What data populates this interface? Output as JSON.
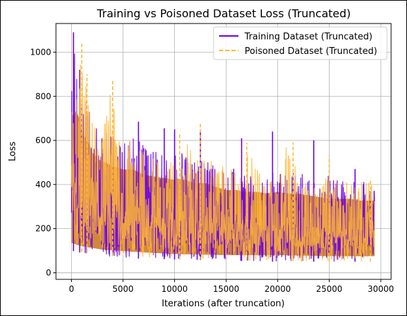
{
  "chart_data": {
    "type": "line",
    "title": "Training vs Poisoned Dataset Loss (Truncated)",
    "xlabel": "Iterations (after truncation)",
    "ylabel": "Loss",
    "xlim": [
      -1500,
      31000
    ],
    "ylim": [
      -30,
      1130
    ],
    "x_ticks": [
      0,
      5000,
      10000,
      15000,
      20000,
      25000,
      30000
    ],
    "y_ticks": [
      0,
      200,
      400,
      600,
      800,
      1000
    ],
    "grid": true,
    "legend_position": "top-right",
    "x_max": 29400,
    "series": [
      {
        "name": "Training Dataset (Truncated)",
        "color": "#6a00e8",
        "style": "solid",
        "upper_envelope": [
          [
            0,
            780
          ],
          [
            200,
            1090
          ],
          [
            500,
            1000
          ],
          [
            1000,
            820
          ],
          [
            1500,
            770
          ],
          [
            2000,
            720
          ],
          [
            3000,
            650
          ],
          [
            4000,
            620
          ],
          [
            5000,
            600
          ],
          [
            6000,
            620
          ],
          [
            7000,
            580
          ],
          [
            8000,
            560
          ],
          [
            9000,
            560
          ],
          [
            10000,
            550
          ],
          [
            11000,
            540
          ],
          [
            12000,
            520
          ],
          [
            13000,
            520
          ],
          [
            14000,
            500
          ],
          [
            15000,
            480
          ],
          [
            16000,
            480
          ],
          [
            17000,
            470
          ],
          [
            18000,
            470
          ],
          [
            19000,
            460
          ],
          [
            20000,
            470
          ],
          [
            21000,
            460
          ],
          [
            22000,
            460
          ],
          [
            23000,
            450
          ],
          [
            24000,
            440
          ],
          [
            25000,
            440
          ],
          [
            26000,
            430
          ],
          [
            27000,
            430
          ],
          [
            28000,
            420
          ],
          [
            29400,
            420
          ]
        ],
        "lower_envelope": [
          [
            0,
            100
          ],
          [
            1000,
            90
          ],
          [
            3000,
            75
          ],
          [
            6000,
            65
          ],
          [
            10000,
            60
          ],
          [
            15000,
            55
          ],
          [
            20000,
            50
          ],
          [
            25000,
            50
          ],
          [
            29400,
            50
          ]
        ],
        "spikes": [
          [
            200,
            1090
          ],
          [
            800,
            920
          ],
          [
            6500,
            685
          ],
          [
            9000,
            655
          ],
          [
            10000,
            650
          ],
          [
            12500,
            640
          ],
          [
            16500,
            610
          ],
          [
            19500,
            640
          ],
          [
            23500,
            600
          ],
          [
            27500,
            470
          ]
        ]
      },
      {
        "name": "Poisoned Dataset (Truncated)",
        "color": "#ffb732",
        "style": "dashed",
        "upper_envelope": [
          [
            0,
            760
          ],
          [
            300,
            950
          ],
          [
            600,
            920
          ],
          [
            1000,
            1040
          ],
          [
            1500,
            820
          ],
          [
            2000,
            700
          ],
          [
            3000,
            640
          ],
          [
            4000,
            870
          ],
          [
            5000,
            600
          ],
          [
            6000,
            600
          ],
          [
            7000,
            570
          ],
          [
            8000,
            560
          ],
          [
            9000,
            550
          ],
          [
            10000,
            540
          ],
          [
            11000,
            620
          ],
          [
            12000,
            520
          ],
          [
            13000,
            520
          ],
          [
            14000,
            500
          ],
          [
            15000,
            490
          ],
          [
            16000,
            480
          ],
          [
            17000,
            580
          ],
          [
            18000,
            470
          ],
          [
            19000,
            460
          ],
          [
            20000,
            470
          ],
          [
            21000,
            590
          ],
          [
            22000,
            460
          ],
          [
            23000,
            450
          ],
          [
            24000,
            440
          ],
          [
            25000,
            430
          ],
          [
            26000,
            430
          ],
          [
            27000,
            430
          ],
          [
            28000,
            420
          ],
          [
            29400,
            420
          ]
        ],
        "lower_envelope": [
          [
            0,
            110
          ],
          [
            1000,
            95
          ],
          [
            3000,
            80
          ],
          [
            6000,
            70
          ],
          [
            10000,
            60
          ],
          [
            15000,
            55
          ],
          [
            20000,
            55
          ],
          [
            25000,
            50
          ],
          [
            29400,
            50
          ]
        ],
        "spikes": [
          [
            1000,
            1040
          ],
          [
            1500,
            900
          ],
          [
            4000,
            870
          ],
          [
            10500,
            630
          ],
          [
            12500,
            675
          ],
          [
            17000,
            590
          ],
          [
            21500,
            590
          ],
          [
            25000,
            530
          ],
          [
            29000,
            420
          ]
        ]
      }
    ],
    "overlap_fill_color": "#d2883c"
  }
}
